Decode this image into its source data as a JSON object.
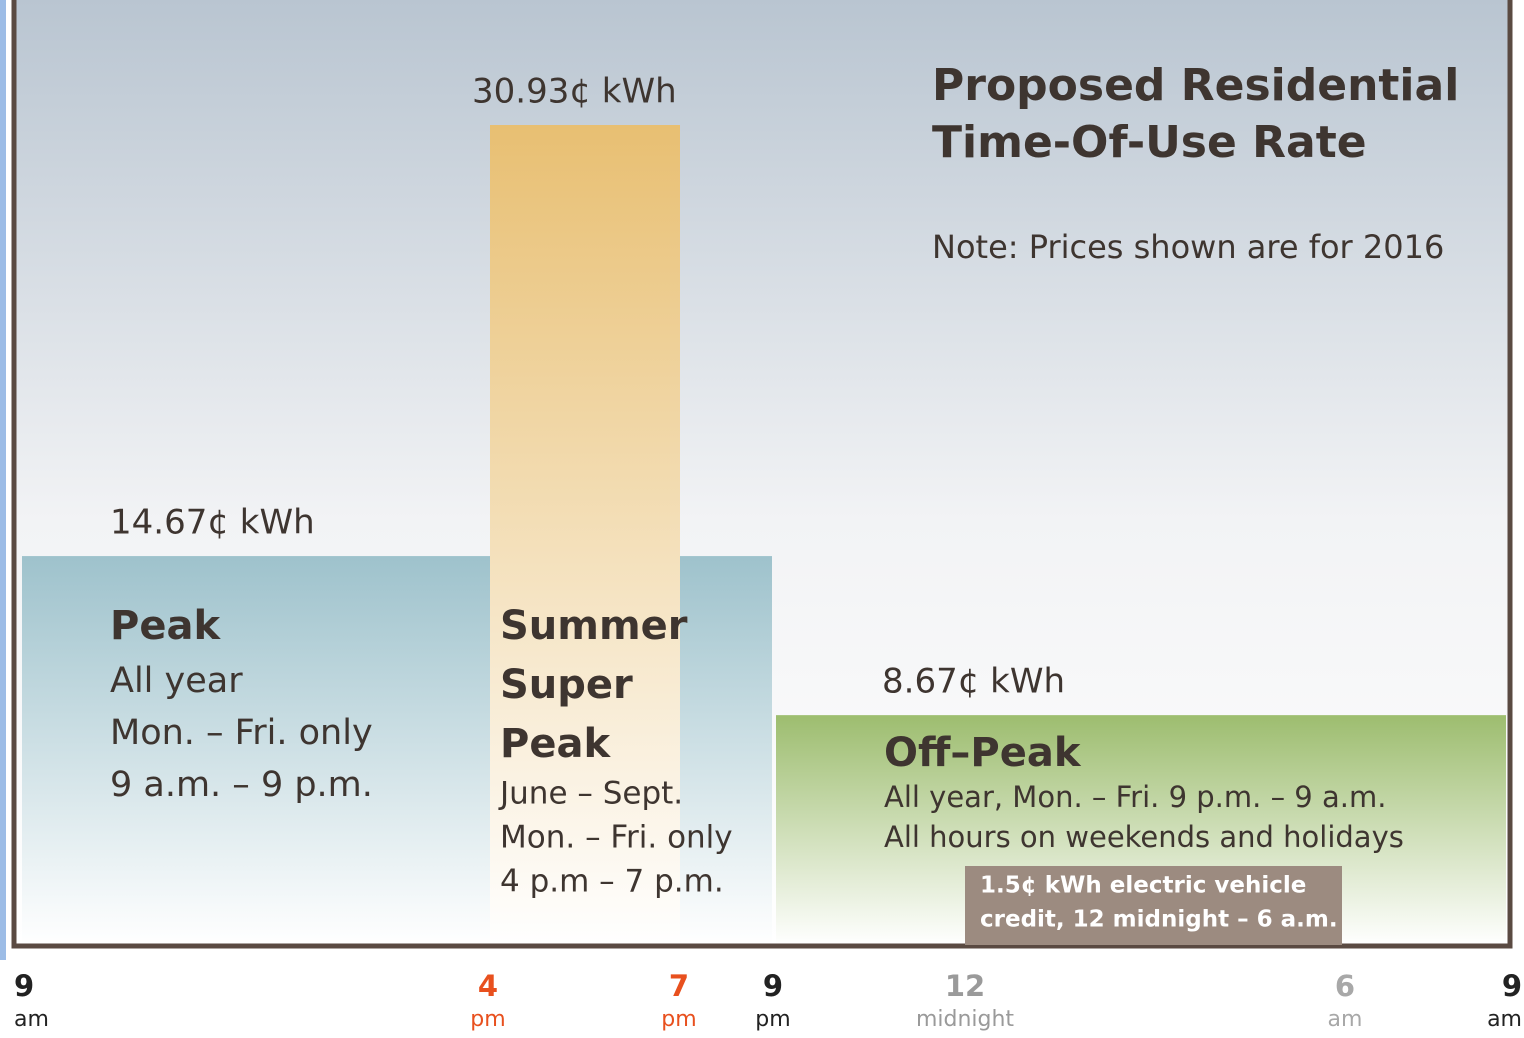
{
  "chart_data": {
    "type": "bar",
    "title": [
      "Proposed Residential",
      "Time-Of-Use Rate"
    ],
    "note": "Note: Prices shown are for 2016",
    "categories": [
      "Peak",
      "Summer Super Peak",
      "Off–Peak"
    ],
    "category_lines": [
      [
        "Peak"
      ],
      [
        "Summer",
        "Super",
        "Peak"
      ],
      [
        "Off–Peak"
      ]
    ],
    "values": [
      14.67,
      30.93,
      8.67
    ],
    "value_labels": [
      "14.67¢ kWh",
      "30.93¢ kWh",
      "8.67¢ kWh"
    ],
    "descriptions": [
      [
        "All year",
        "Mon. – Fri. only",
        "9 a.m. – 9 p.m."
      ],
      [
        "June – Sept.",
        "Mon. – Fri. only",
        "4 p.m – 7 p.m."
      ],
      [
        "All year, Mon. – Fri. 9 p.m. – 9 a.m.",
        "All hours on weekends and holidays"
      ]
    ],
    "colors": [
      "#9ec2cc",
      "#e8bf72",
      "#9dbd6f"
    ],
    "credit": {
      "value": 1.5,
      "lines": [
        "1.5¢ kWh electric vehicle",
        "credit, 12 midnight – 6 a.m."
      ],
      "color": "#9c8b80"
    },
    "xticks": [
      {
        "hour": "9",
        "period": "am",
        "color": "#222222"
      },
      {
        "hour": "4",
        "period": "pm",
        "color": "#e8501e"
      },
      {
        "hour": "7",
        "period": "pm",
        "color": "#e8501e"
      },
      {
        "hour": "9",
        "period": "pm",
        "color": "#222222"
      },
      {
        "hour": "12",
        "period": "midnight",
        "color": "#9a9a9a"
      },
      {
        "hour": "6",
        "period": "am",
        "color": "#a8a8a8"
      },
      {
        "hour": "9",
        "period": "am",
        "color": "#222222"
      }
    ]
  }
}
